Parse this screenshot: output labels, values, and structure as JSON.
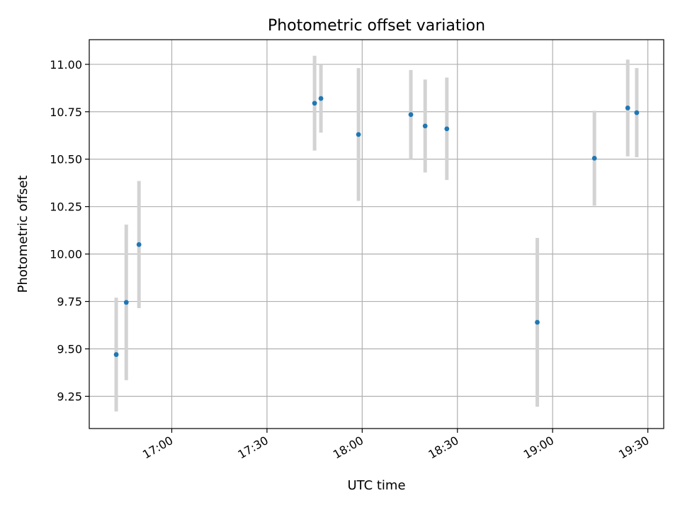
{
  "chart_data": {
    "type": "scatter",
    "title": "Photometric offset variation",
    "xlabel": "UTC time",
    "ylabel": "Photometric offset",
    "x_axis_type": "time",
    "xlim": [
      "16:34:00",
      "19:35:00"
    ],
    "ylim": [
      9.08,
      11.13
    ],
    "x_ticks": [
      "17:00",
      "17:30",
      "18:00",
      "18:30",
      "19:00",
      "19:30"
    ],
    "y_ticks": [
      "9.25",
      "9.50",
      "9.75",
      "10.00",
      "10.25",
      "10:50",
      "10.75",
      "11.00"
    ],
    "grid": true,
    "marker_color": "#1f77b4",
    "errorbar_color": "#d3d3d3",
    "points": [
      {
        "time": "16:42:30",
        "y": 9.47,
        "err": 0.3
      },
      {
        "time": "16:45:40",
        "y": 9.745,
        "err": 0.41
      },
      {
        "time": "16:49:40",
        "y": 10.05,
        "err": 0.335
      },
      {
        "time": "17:45:00",
        "y": 10.795,
        "err": 0.25
      },
      {
        "time": "17:47:00",
        "y": 10.82,
        "err": 0.18
      },
      {
        "time": "17:58:50",
        "y": 10.63,
        "err": 0.35
      },
      {
        "time": "18:15:20",
        "y": 10.735,
        "err": 0.235
      },
      {
        "time": "18:19:50",
        "y": 10.675,
        "err": 0.245
      },
      {
        "time": "18:26:40",
        "y": 10.66,
        "err": 0.27
      },
      {
        "time": "18:55:10",
        "y": 9.64,
        "err": 0.445
      },
      {
        "time": "19:13:10",
        "y": 10.505,
        "err": 0.25
      },
      {
        "time": "19:23:40",
        "y": 10.77,
        "err": 0.255
      },
      {
        "time": "19:26:30",
        "y": 10.745,
        "err": 0.235
      }
    ]
  }
}
